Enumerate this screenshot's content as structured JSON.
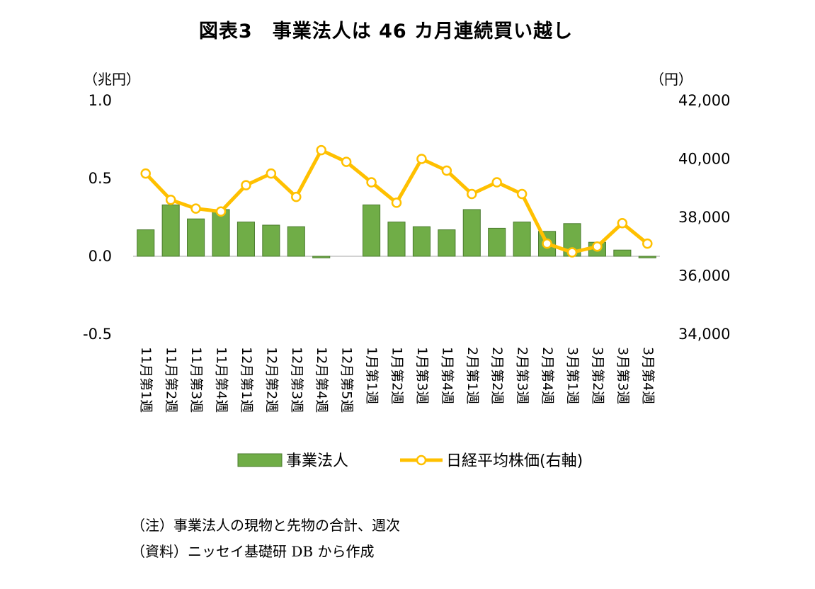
{
  "title": "図表3　事業法人は 46 カ月連続買い越し",
  "left_unit": "（兆円）",
  "right_unit": "（円）",
  "notes": {
    "note1": "（注）事業法人の現物と先物の合計、週次",
    "note2": "（資料）ニッセイ基礎研 DB から作成"
  },
  "colors": {
    "bar": "#70ad47",
    "bar_edge": "#4a7a2e",
    "line": "#ffc000",
    "marker_fill": "#ffffff"
  },
  "chart_data": {
    "type": "bar+line",
    "categories": [
      "11月第1週",
      "11月第2週",
      "11月第3週",
      "11月第4週",
      "12月第1週",
      "12月第2週",
      "12月第3週",
      "12月第4週",
      "12月第5週",
      "1月第1週",
      "1月第2週",
      "1月第3週",
      "1月第4週",
      "2月第1週",
      "2月第2週",
      "2月第3週",
      "2月第4週",
      "3月第1週",
      "3月第2週",
      "3月第3週",
      "3月第4週"
    ],
    "series": [
      {
        "name": "事業法人",
        "type": "bar",
        "axis": "left",
        "values": [
          0.17,
          0.33,
          0.24,
          0.3,
          0.22,
          0.2,
          0.19,
          -0.01,
          0.0,
          0.33,
          0.22,
          0.19,
          0.17,
          0.3,
          0.18,
          0.22,
          0.16,
          0.21,
          0.09,
          0.04,
          -0.01
        ]
      },
      {
        "name": "日経平均株価(右軸)",
        "type": "line",
        "axis": "right",
        "values": [
          39500,
          38600,
          38300,
          38200,
          39100,
          39500,
          38700,
          40300,
          39900,
          39200,
          38500,
          40000,
          39600,
          38800,
          39200,
          38800,
          37100,
          36800,
          37000,
          37800,
          37100
        ]
      }
    ],
    "left_axis": {
      "ylim": [
        -0.5,
        1.0
      ],
      "ticks": [
        "1.0",
        "0.5",
        "0.0",
        "-0.5"
      ],
      "tick_values": [
        1.0,
        0.5,
        0.0,
        -0.5
      ]
    },
    "right_axis": {
      "ylim": [
        34000,
        42000
      ],
      "ticks": [
        "42,000",
        "40,000",
        "38,000",
        "36,000",
        "34,000"
      ],
      "tick_values": [
        42000,
        40000,
        38000,
        36000,
        34000
      ]
    },
    "legend_position": "bottom",
    "grid": false
  }
}
